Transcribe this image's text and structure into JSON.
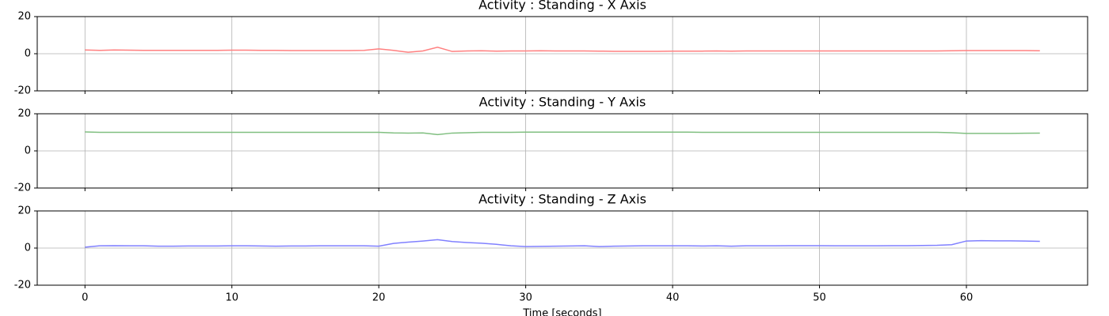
{
  "chart_data": [
    {
      "type": "line",
      "title": "Activity : Standing - X Axis",
      "x": [
        0,
        1,
        2,
        3,
        4,
        5,
        6,
        7,
        8,
        9,
        10,
        11,
        12,
        13,
        14,
        15,
        16,
        17,
        18,
        19,
        20,
        21,
        22,
        23,
        24,
        25,
        26,
        27,
        28,
        29,
        30,
        31,
        32,
        33,
        34,
        35,
        36,
        37,
        38,
        39,
        40,
        41,
        42,
        43,
        44,
        45,
        46,
        47,
        48,
        49,
        50,
        51,
        52,
        53,
        54,
        55,
        56,
        57,
        58,
        59,
        60,
        61,
        62,
        63,
        64,
        65
      ],
      "series": [
        {
          "color": "#ff8080",
          "values": [
            2,
            1.8,
            2,
            1.9,
            1.8,
            1.8,
            1.8,
            1.8,
            1.8,
            1.8,
            1.9,
            1.9,
            1.8,
            1.8,
            1.7,
            1.7,
            1.7,
            1.7,
            1.7,
            1.8,
            2.6,
            1.8,
            0.8,
            1.5,
            3.5,
            1.2,
            1.5,
            1.6,
            1.4,
            1.5,
            1.5,
            1.6,
            1.5,
            1.5,
            1.5,
            1.4,
            1.3,
            1.3,
            1.3,
            1.3,
            1.4,
            1.4,
            1.4,
            1.5,
            1.4,
            1.5,
            1.5,
            1.5,
            1.5,
            1.5,
            1.5,
            1.5,
            1.5,
            1.5,
            1.5,
            1.5,
            1.5,
            1.5,
            1.5,
            1.6,
            1.7,
            1.7,
            1.7,
            1.7,
            1.7,
            1.6
          ]
        }
      ],
      "xlim": [
        -3.25,
        68.25
      ],
      "xticks": [
        0,
        10,
        20,
        30,
        40,
        50,
        60
      ],
      "ylim": [
        -20,
        20
      ],
      "yticks": [
        -20,
        0,
        20
      ],
      "grid": true
    },
    {
      "type": "line",
      "title": "Activity : Standing - Y Axis",
      "x": [
        0,
        1,
        2,
        3,
        4,
        5,
        6,
        7,
        8,
        9,
        10,
        11,
        12,
        13,
        14,
        15,
        16,
        17,
        18,
        19,
        20,
        21,
        22,
        23,
        24,
        25,
        26,
        27,
        28,
        29,
        30,
        31,
        32,
        33,
        34,
        35,
        36,
        37,
        38,
        39,
        40,
        41,
        42,
        43,
        44,
        45,
        46,
        47,
        48,
        49,
        50,
        51,
        52,
        53,
        54,
        55,
        56,
        57,
        58,
        59,
        60,
        61,
        62,
        63,
        64,
        65
      ],
      "series": [
        {
          "color": "#80bf80",
          "values": [
            10.2,
            10,
            10,
            10,
            10,
            10,
            10,
            10,
            10,
            10,
            10,
            10,
            10,
            10,
            10,
            10,
            10,
            10,
            10,
            10,
            10,
            9.7,
            9.6,
            9.7,
            8.8,
            9.6,
            9.8,
            10,
            10,
            10,
            10.1,
            10.1,
            10.1,
            10.1,
            10.1,
            10.1,
            10.1,
            10.1,
            10.1,
            10.1,
            10.1,
            10.1,
            10,
            10,
            10,
            10,
            10,
            10,
            10,
            10,
            10,
            10,
            10,
            10,
            10,
            10,
            10,
            10,
            10,
            9.8,
            9.4,
            9.4,
            9.4,
            9.4,
            9.5,
            9.6
          ]
        }
      ],
      "xlim": [
        -3.25,
        68.25
      ],
      "xticks": [
        0,
        10,
        20,
        30,
        40,
        50,
        60
      ],
      "ylim": [
        -20,
        20
      ],
      "yticks": [
        -20,
        0,
        20
      ],
      "grid": true
    },
    {
      "type": "line",
      "title": "Activity : Standing - Z Axis",
      "xlabel": "Time [seconds]",
      "x": [
        0,
        1,
        2,
        3,
        4,
        5,
        6,
        7,
        8,
        9,
        10,
        11,
        12,
        13,
        14,
        15,
        16,
        17,
        18,
        19,
        20,
        21,
        22,
        23,
        24,
        25,
        26,
        27,
        28,
        29,
        30,
        31,
        32,
        33,
        34,
        35,
        36,
        37,
        38,
        39,
        40,
        41,
        42,
        43,
        44,
        45,
        46,
        47,
        48,
        49,
        50,
        51,
        52,
        53,
        54,
        55,
        56,
        57,
        58,
        59,
        60,
        61,
        62,
        63,
        64,
        65
      ],
      "series": [
        {
          "color": "#8080ff",
          "values": [
            0.5,
            1.2,
            1.3,
            1.2,
            1.2,
            1,
            1,
            1.1,
            1.1,
            1.1,
            1.2,
            1.2,
            1.1,
            1,
            1.1,
            1.1,
            1.2,
            1.2,
            1.2,
            1.2,
            1,
            2.5,
            3.2,
            3.8,
            4.5,
            3.5,
            3,
            2.6,
            2,
            1.2,
            0.8,
            0.9,
            1,
            1.1,
            1.2,
            0.8,
            1,
            1.1,
            1.2,
            1.2,
            1.2,
            1.2,
            1.1,
            1.2,
            1,
            1.2,
            1.2,
            1.2,
            1.3,
            1.3,
            1.3,
            1.2,
            1.2,
            1.2,
            1.2,
            1.3,
            1.3,
            1.4,
            1.5,
            1.8,
            3.8,
            4,
            3.9,
            3.9,
            3.8,
            3.6
          ]
        }
      ],
      "xlim": [
        -3.25,
        68.25
      ],
      "xticks": [
        0,
        10,
        20,
        30,
        40,
        50,
        60
      ],
      "ylim": [
        -20,
        20
      ],
      "yticks": [
        -20,
        0,
        20
      ],
      "grid": true
    }
  ]
}
